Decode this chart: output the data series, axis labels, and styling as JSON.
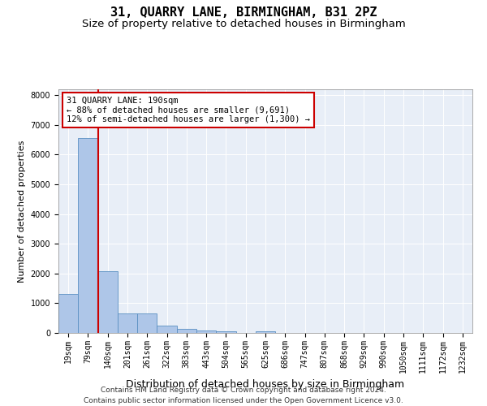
{
  "title1": "31, QUARRY LANE, BIRMINGHAM, B31 2PZ",
  "title2": "Size of property relative to detached houses in Birmingham",
  "xlabel": "Distribution of detached houses by size in Birmingham",
  "ylabel": "Number of detached properties",
  "categories": [
    "19sqm",
    "79sqm",
    "140sqm",
    "201sqm",
    "261sqm",
    "322sqm",
    "383sqm",
    "443sqm",
    "504sqm",
    "565sqm",
    "625sqm",
    "686sqm",
    "747sqm",
    "807sqm",
    "868sqm",
    "929sqm",
    "990sqm",
    "1050sqm",
    "1111sqm",
    "1172sqm",
    "1232sqm"
  ],
  "values": [
    1300,
    6550,
    2080,
    650,
    650,
    250,
    130,
    80,
    60,
    0,
    60,
    0,
    0,
    0,
    0,
    0,
    0,
    0,
    0,
    0,
    0
  ],
  "bar_color": "#aec6e8",
  "bar_edge_color": "#5a8fc2",
  "vline_color": "#cc0000",
  "annotation_text": "31 QUARRY LANE: 190sqm\n← 88% of detached houses are smaller (9,691)\n12% of semi-detached houses are larger (1,300) →",
  "annotation_box_color": "white",
  "annotation_box_edge": "#cc0000",
  "ylim": [
    0,
    8200
  ],
  "yticks": [
    0,
    1000,
    2000,
    3000,
    4000,
    5000,
    6000,
    7000,
    8000
  ],
  "bg_color": "#e8eef7",
  "footnote": "Contains HM Land Registry data © Crown copyright and database right 2024.\nContains public sector information licensed under the Open Government Licence v3.0.",
  "title_fontsize": 11,
  "subtitle_fontsize": 9.5,
  "xlabel_fontsize": 9,
  "ylabel_fontsize": 8,
  "tick_fontsize": 7,
  "annotation_fontsize": 7.5,
  "footnote_fontsize": 6.5
}
